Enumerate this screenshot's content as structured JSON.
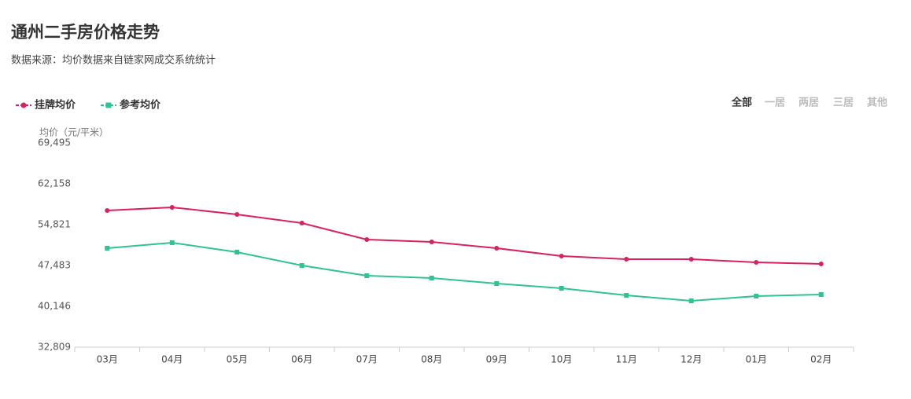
{
  "chart_data": {
    "type": "line",
    "title": "通州二手房价格走势",
    "subtitle": "数据来源：均价数据来自链家网成交系统统计",
    "y_axis_label": "均价（元/平米）",
    "categories": [
      "03月",
      "04月",
      "05月",
      "06月",
      "07月",
      "08月",
      "09月",
      "10月",
      "11月",
      "12月",
      "01月",
      "02月"
    ],
    "series": [
      {
        "name": "挂牌均价",
        "color": "#d9215e",
        "marker": "circle",
        "values": [
          57360,
          57930,
          56660,
          55100,
          52140,
          51720,
          50590,
          49180,
          48610,
          48610,
          48050,
          47770
        ]
      },
      {
        "name": "参考均价",
        "color": "#2fc48f",
        "marker": "square",
        "values": [
          50590,
          51580,
          49880,
          47480,
          45650,
          45230,
          44240,
          43390,
          42120,
          41130,
          41980,
          42260
        ]
      }
    ],
    "ylim": [
      32809,
      69495
    ],
    "yticks": [
      {
        "value": 32809,
        "label": "32,809"
      },
      {
        "value": 40146,
        "label": "40,146"
      },
      {
        "value": 47483,
        "label": "47,483"
      },
      {
        "value": 54821,
        "label": "54,821"
      },
      {
        "value": 62158,
        "label": "62,158"
      },
      {
        "value": 69495,
        "label": "69,495"
      }
    ],
    "grid": false
  },
  "tabs": [
    "全部",
    "一居",
    "两居",
    "三居",
    "其他"
  ]
}
